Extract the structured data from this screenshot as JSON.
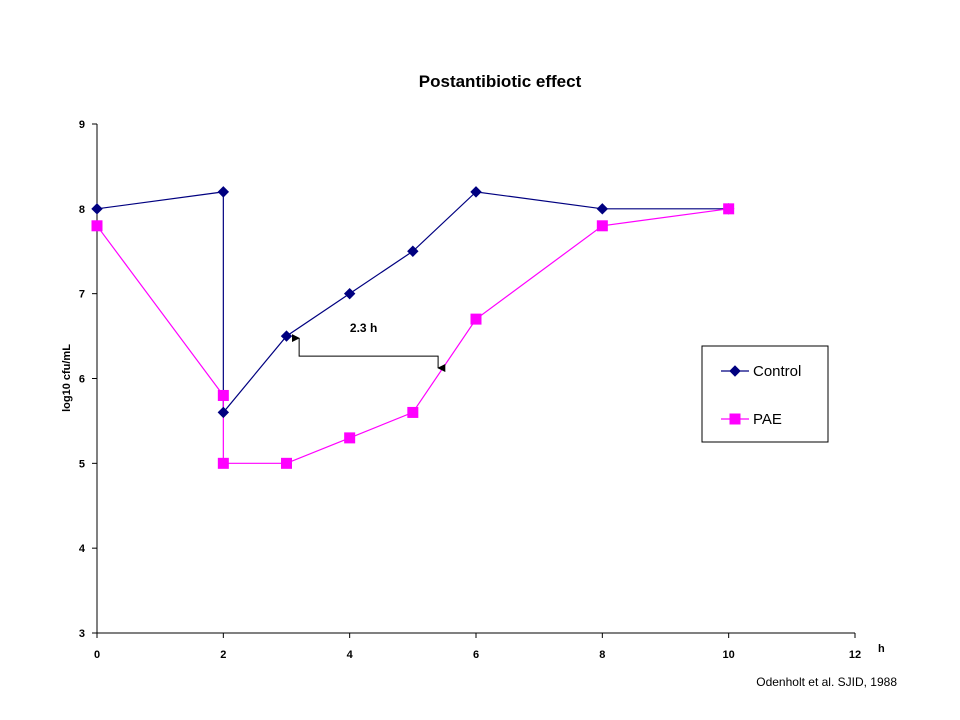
{
  "chart_data": {
    "type": "line",
    "title": "Postantibiotic effect",
    "xlabel": "h",
    "ylabel": "log10 cfu/mL",
    "xlim": [
      0,
      12
    ],
    "ylim": [
      3,
      9
    ],
    "x_ticks": [
      0,
      2,
      4,
      6,
      8,
      10,
      12
    ],
    "y_ticks": [
      3,
      4,
      5,
      6,
      7,
      8,
      9
    ],
    "grid": false,
    "legend_position": "right",
    "series": [
      {
        "name": "Control",
        "color": "#000080",
        "marker": "diamond",
        "points": [
          [
            0,
            8.0
          ],
          [
            2,
            8.2
          ],
          [
            2,
            5.6
          ],
          [
            3,
            6.5
          ],
          [
            4,
            7.0
          ],
          [
            5,
            7.5
          ],
          [
            6,
            8.2
          ],
          [
            8,
            8.0
          ],
          [
            10,
            8.0
          ]
        ]
      },
      {
        "name": "PAE",
        "color": "#ff00ff",
        "marker": "square",
        "points": [
          [
            0,
            7.8
          ],
          [
            2,
            5.8
          ],
          [
            2,
            5.0
          ],
          [
            3,
            5.0
          ],
          [
            4,
            5.3
          ],
          [
            5,
            5.6
          ],
          [
            6,
            6.7
          ],
          [
            8,
            7.8
          ],
          [
            10,
            8.0
          ]
        ]
      }
    ],
    "annotation": {
      "text": "2.3 h",
      "from": [
        3.2,
        6.5
      ],
      "to": [
        5.4,
        6.1
      ]
    },
    "source_note": "Odenholt et al. SJID, 1988"
  }
}
